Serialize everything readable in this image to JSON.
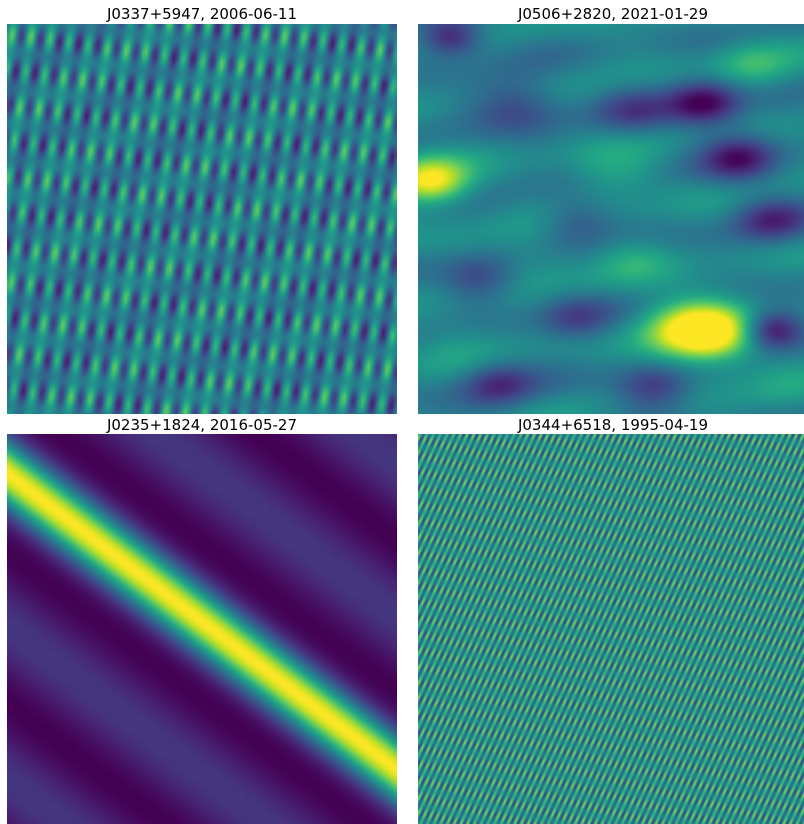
{
  "panels": [
    {
      "title": "J0337+5947, 2006-06-11",
      "pattern": "dirty-beam-sidelobes",
      "colormap": "viridis"
    },
    {
      "title": "J0506+2820, 2021-01-29",
      "pattern": "noise-blobs",
      "colormap": "viridis"
    },
    {
      "title": "J0235+1824, 2016-05-27",
      "pattern": "diagonal-band",
      "colormap": "viridis"
    },
    {
      "title": "J0344+6518, 1995-04-19",
      "pattern": "fine-stripes",
      "colormap": "viridis"
    }
  ]
}
